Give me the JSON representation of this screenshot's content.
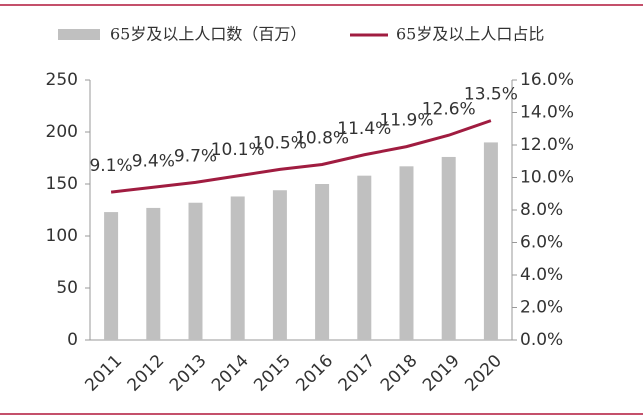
{
  "chart_data": {
    "type": "combo",
    "categories": [
      "2011",
      "2012",
      "2013",
      "2014",
      "2015",
      "2016",
      "2017",
      "2018",
      "2019",
      "2020"
    ],
    "series": [
      {
        "name": "65岁及以上人口数（百万）",
        "type": "bar",
        "color": "#c0c0c0",
        "values": [
          123,
          127,
          132,
          138,
          144,
          150,
          158,
          167,
          176,
          190
        ]
      },
      {
        "name": "65岁及以上人口占比",
        "type": "line",
        "axis": "y2",
        "color": "#a01c40",
        "values": [
          9.1,
          9.4,
          9.7,
          10.1,
          10.5,
          10.8,
          11.4,
          11.9,
          12.6,
          13.5
        ],
        "value_labels": [
          "9.1%",
          "9.4%",
          "9.7%",
          "10.1%",
          "10.5%",
          "10.8%",
          "11.4%",
          "11.9%",
          "12.6%",
          "13.5%"
        ]
      }
    ],
    "ylim": [
      0,
      250
    ],
    "yticks": [
      0,
      50,
      100,
      150,
      200,
      250
    ],
    "y2lim": [
      0,
      16
    ],
    "y2ticks": [
      {
        "value": 0,
        "label": "0.0%"
      },
      {
        "value": 2,
        "label": "2.0%"
      },
      {
        "value": 4,
        "label": "4.0%"
      },
      {
        "value": 6,
        "label": "6.0%"
      },
      {
        "value": 8,
        "label": "8.0%"
      },
      {
        "value": 10,
        "label": "10.0%"
      },
      {
        "value": 12,
        "label": "12.0%"
      },
      {
        "value": 14,
        "label": "14.0%"
      },
      {
        "value": 16,
        "label": "16.0%"
      }
    ]
  }
}
